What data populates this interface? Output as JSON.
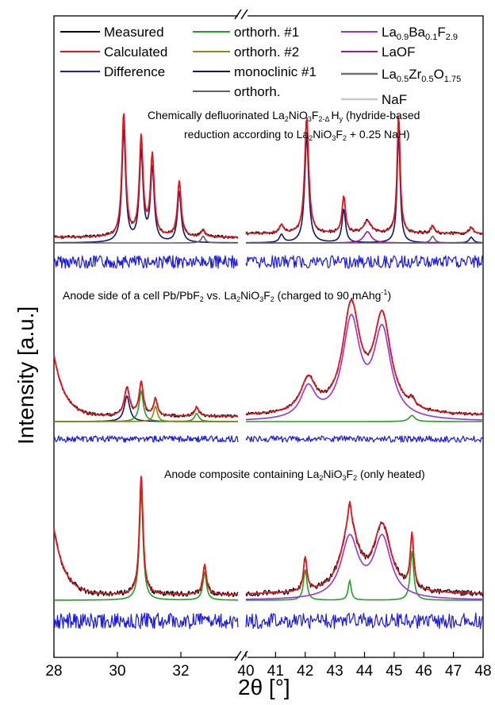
{
  "chart_data": {
    "type": "line",
    "title": "",
    "xlabel": "2θ [°]",
    "ylabel": "Intensity [a.u.]",
    "x_ticks_left": [
      "28",
      "30",
      "32"
    ],
    "x_ticks_right": [
      "40",
      "41",
      "42",
      "43",
      "44",
      "45",
      "46",
      "47",
      "48"
    ],
    "xlim_left": [
      28,
      33.8
    ],
    "xlim_right": [
      40,
      48
    ],
    "grid": false,
    "legend_position": "top",
    "legend": [
      {
        "label": "Measured",
        "color": "#000000"
      },
      {
        "label": "Calculated",
        "color": "#e8141b"
      },
      {
        "label": "Difference",
        "color": "#1a1ae6"
      },
      {
        "label": "orthorh. #1",
        "color": "#22a022"
      },
      {
        "label": "orthorh. #2",
        "color": "#8c8c14"
      },
      {
        "label": "monoclinic #1",
        "color": "#14146e"
      },
      {
        "label": "orthorh.",
        "color": "#606060"
      },
      {
        "label": "La0.9Ba0.1F2.9",
        "color": "#9b30e0"
      },
      {
        "label": "LaOF",
        "color": "#a0189e"
      },
      {
        "label": "La0.5Zr0.5O1.75",
        "color": "#707070"
      },
      {
        "label": "NaF",
        "color": "#c8c8c8"
      }
    ],
    "panels": [
      {
        "annotation_lines": [
          "Chemically defluorinated La2NiO3F2-Δ Hy (hydride-based",
          "reduction according to La2NiO3F2 + 0.25 NaH)"
        ],
        "peaks": [
          {
            "x": 30.2,
            "h": 1.0,
            "w": 0.07,
            "phase": "monoclinic #1"
          },
          {
            "x": 30.75,
            "h": 0.8,
            "w": 0.07,
            "phase": "monoclinic #1"
          },
          {
            "x": 31.1,
            "h": 0.65,
            "w": 0.07,
            "phase": "monoclinic #1"
          },
          {
            "x": 31.95,
            "h": 0.45,
            "w": 0.07,
            "phase": "monoclinic #1"
          },
          {
            "x": 32.7,
            "h": 0.06,
            "w": 0.07,
            "phase": "orthorh."
          },
          {
            "x": 41.2,
            "h": 0.07,
            "w": 0.08,
            "phase": "monoclinic #1"
          },
          {
            "x": 42.05,
            "h": 0.95,
            "w": 0.08,
            "phase": "monoclinic #1"
          },
          {
            "x": 43.3,
            "h": 0.3,
            "w": 0.07,
            "phase": "monoclinic #1"
          },
          {
            "x": 44.1,
            "h": 0.1,
            "w": 0.15,
            "phase": "LaOF"
          },
          {
            "x": 45.15,
            "h": 0.98,
            "w": 0.06,
            "phase": "monoclinic #1"
          },
          {
            "x": 46.3,
            "h": 0.06,
            "w": 0.08,
            "phase": "orthorh."
          },
          {
            "x": 47.6,
            "h": 0.05,
            "w": 0.08,
            "phase": "monoclinic #1"
          }
        ]
      },
      {
        "annotation_lines": [
          "Anode side of a cell Pb/PbF2 vs. La2NiO3F2 (charged to 90 mAhg-1)"
        ],
        "peaks": [
          {
            "x": 30.3,
            "h": 0.25,
            "w": 0.1,
            "phase": "monoclinic #1"
          },
          {
            "x": 30.75,
            "h": 0.3,
            "w": 0.08,
            "phase": "orthorh. #1"
          },
          {
            "x": 31.2,
            "h": 0.15,
            "w": 0.07,
            "phase": "orthorh. #2"
          },
          {
            "x": 32.5,
            "h": 0.08,
            "w": 0.08,
            "phase": "orthorh. #1"
          },
          {
            "x": 42.1,
            "h": 0.3,
            "w": 0.3,
            "phase": "La0.9Ba0.1F2.9"
          },
          {
            "x": 43.55,
            "h": 0.95,
            "w": 0.35,
            "phase": "La0.9Ba0.1F2.9"
          },
          {
            "x": 44.6,
            "h": 0.85,
            "w": 0.35,
            "phase": "La0.9Ba0.1F2.9"
          },
          {
            "x": 45.6,
            "h": 0.06,
            "w": 0.12,
            "phase": "orthorh. #1"
          }
        ]
      },
      {
        "annotation_lines": [
          "Anode composite containing La2NiO3F2 (only heated)"
        ],
        "peaks": [
          {
            "x": 30.75,
            "h": 1.0,
            "w": 0.07,
            "phase": "orthorh. #1"
          },
          {
            "x": 32.75,
            "h": 0.25,
            "w": 0.07,
            "phase": "orthorh. #1"
          },
          {
            "x": 42.0,
            "h": 0.28,
            "w": 0.07,
            "phase": "orthorh. #1"
          },
          {
            "x": 43.5,
            "h": 0.55,
            "w": 0.35,
            "phase": "La0.9Ba0.1F2.9"
          },
          {
            "x": 43.5,
            "h": 0.18,
            "w": 0.06,
            "phase": "orthorh. #1"
          },
          {
            "x": 44.6,
            "h": 0.55,
            "w": 0.35,
            "phase": "La0.9Ba0.1F2.9"
          },
          {
            "x": 45.6,
            "h": 0.45,
            "w": 0.07,
            "phase": "orthorh. #1"
          }
        ]
      }
    ]
  }
}
